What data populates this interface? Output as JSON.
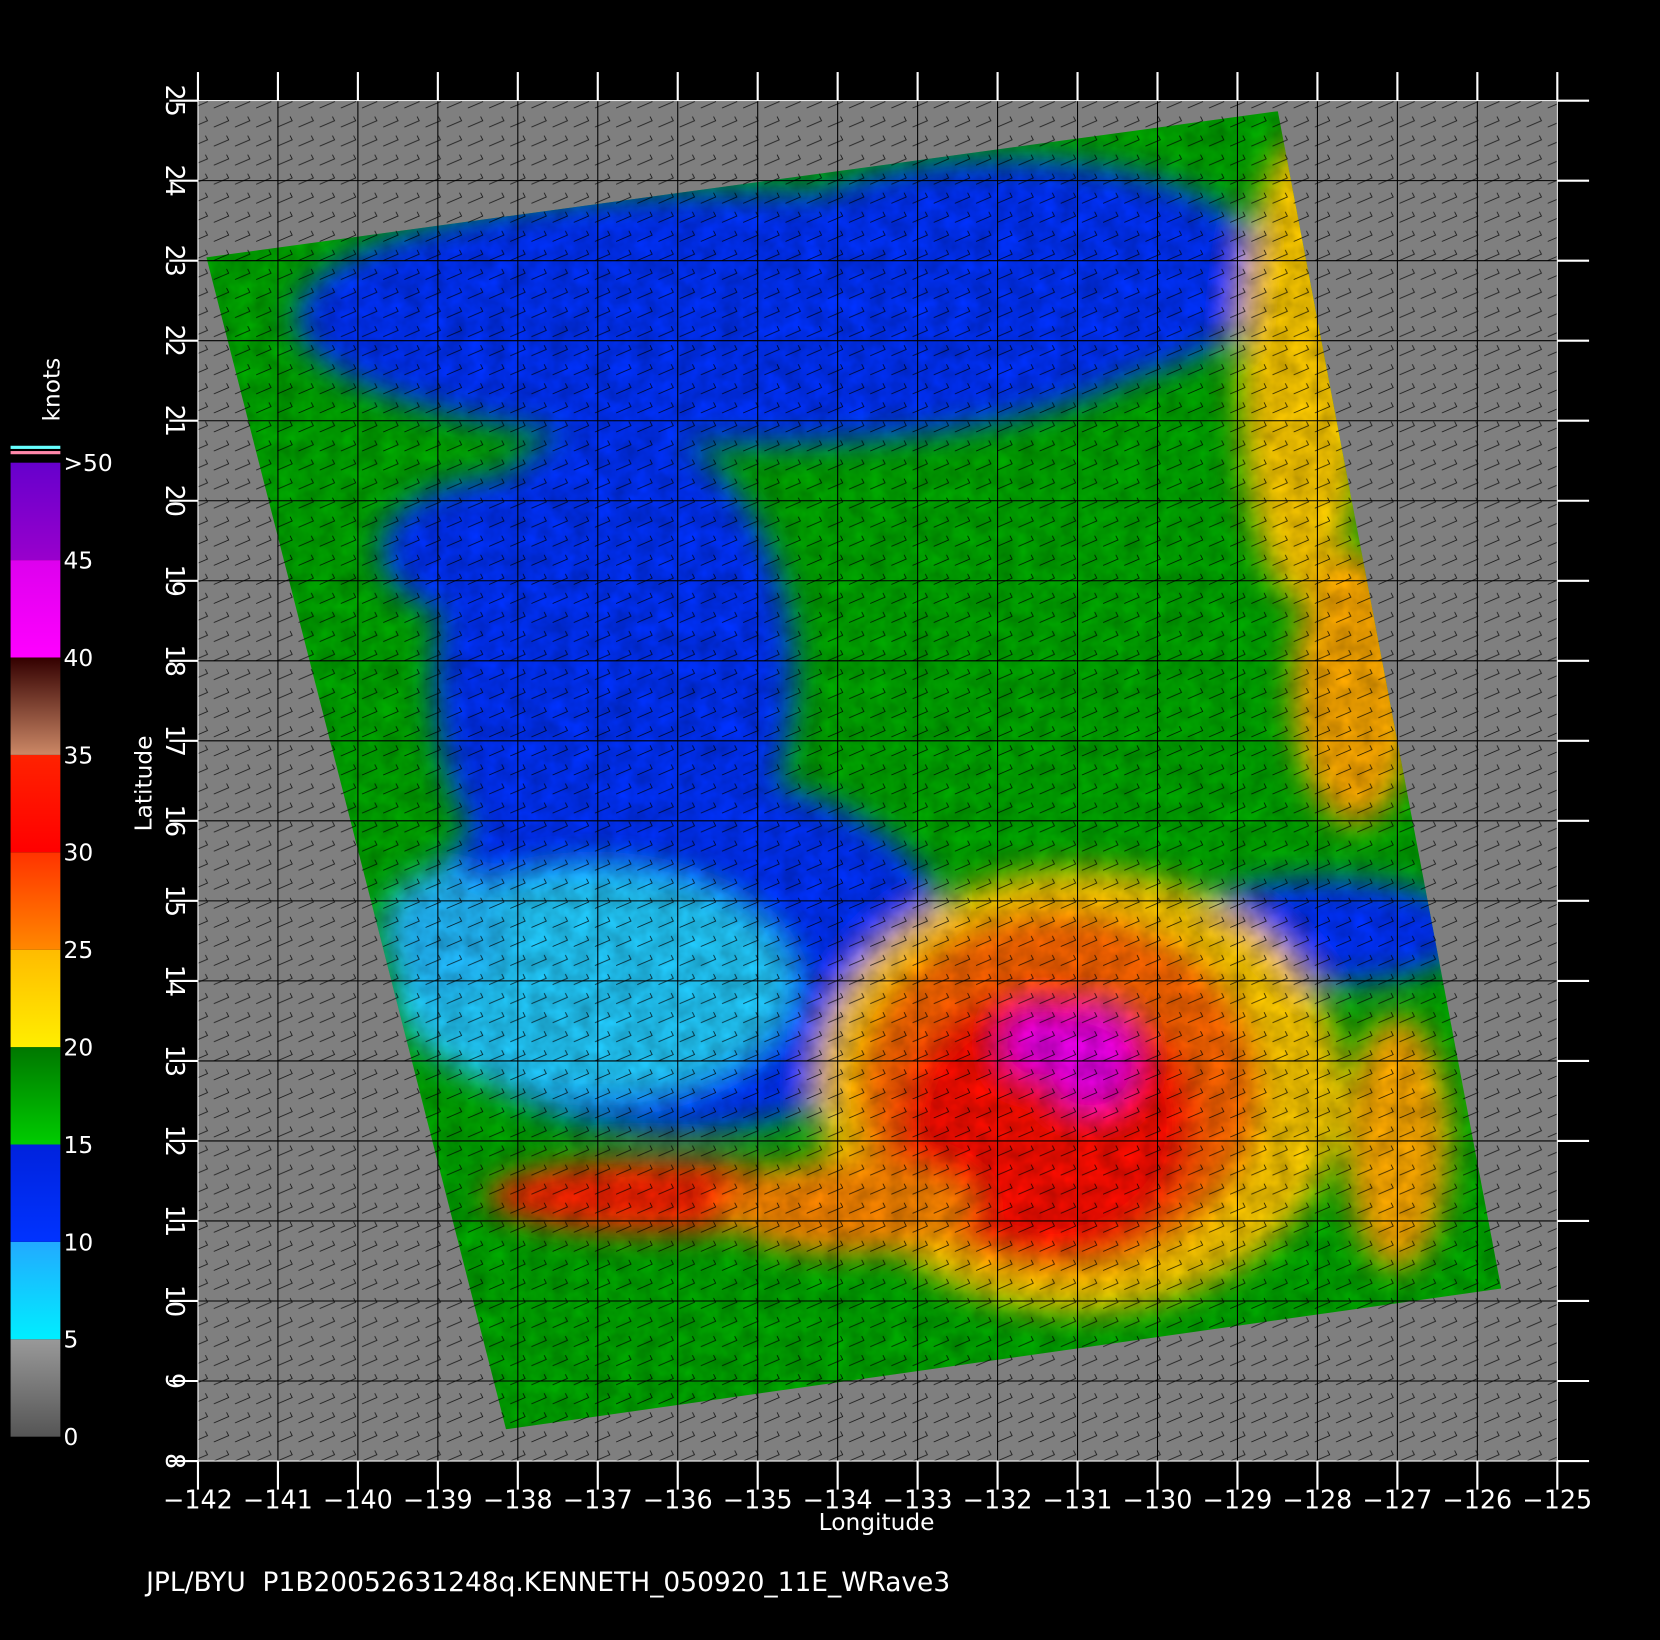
{
  "map": {
    "xlabel": "Longitude",
    "ylabel": "Latitude",
    "xlim": [
      -142,
      -125
    ],
    "ylim": [
      8,
      25
    ],
    "xticks": [
      {
        "value": -142,
        "label": "−142"
      },
      {
        "value": -141,
        "label": "−141"
      },
      {
        "value": -140,
        "label": "−140"
      },
      {
        "value": -139,
        "label": "−139"
      },
      {
        "value": -138,
        "label": "−138"
      },
      {
        "value": -137,
        "label": "−137"
      },
      {
        "value": -136,
        "label": "−136"
      },
      {
        "value": -135,
        "label": "−135"
      },
      {
        "value": -134,
        "label": "−134"
      },
      {
        "value": -133,
        "label": "−133"
      },
      {
        "value": -132,
        "label": "−132"
      },
      {
        "value": -131,
        "label": "−131"
      },
      {
        "value": -130,
        "label": "−130"
      },
      {
        "value": -129,
        "label": "−129"
      },
      {
        "value": -128,
        "label": "−128"
      },
      {
        "value": -127,
        "label": "−127"
      },
      {
        "value": -126,
        "label": "−126"
      },
      {
        "value": -125,
        "label": "−125"
      }
    ],
    "yticks": [
      8,
      9,
      10,
      11,
      12,
      13,
      14,
      15,
      16,
      17,
      18,
      19,
      20,
      21,
      22,
      23,
      24,
      25
    ],
    "grid": true,
    "colorbar": {
      "unit": "knots",
      "ticks": [
        0,
        5,
        10,
        15,
        20,
        25,
        30,
        35,
        40,
        45,
        {
          "value": 50,
          "label": ">50"
        }
      ],
      "colors": [
        [
          "#555555",
          "#999999"
        ],
        [
          "#00eeff",
          "#22aaff"
        ],
        [
          "#0033ff",
          "#0022dd"
        ],
        [
          "#00cc00",
          "#007700"
        ],
        [
          "#ffee00",
          "#ffbb00"
        ],
        [
          "#ff8800",
          "#ff3300"
        ],
        [
          "#ff0000",
          "#ff2200"
        ],
        [
          "#cc8866",
          "#330000"
        ],
        [
          "#ff00ff",
          "#dd00ee"
        ],
        [
          "#9900cc",
          "#6600cc"
        ]
      ]
    },
    "footer": "JPL/BYU  P1B20052631248q.KENNETH_050920_11E_WRave3"
  }
}
